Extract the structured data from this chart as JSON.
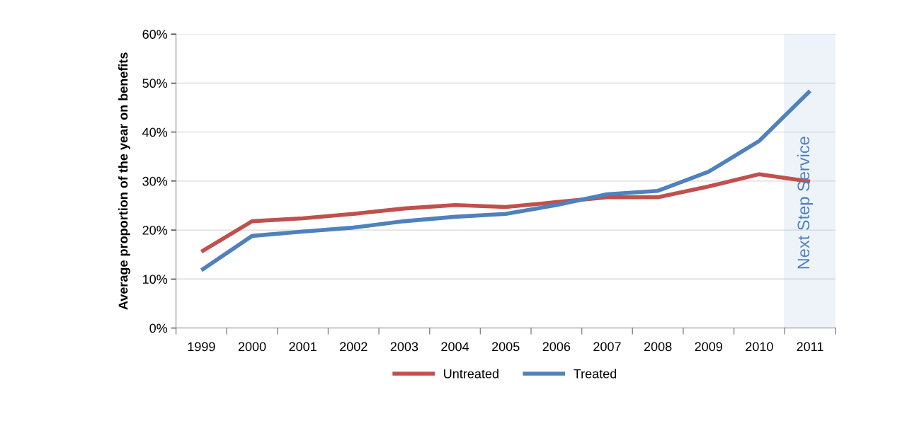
{
  "chart_data": {
    "type": "line",
    "ylabel": "Average proportion of the year on benefits",
    "categories": [
      "1999",
      "2000",
      "2001",
      "2002",
      "2003",
      "2004",
      "2005",
      "2006",
      "2007",
      "2008",
      "2009",
      "2010",
      "2011"
    ],
    "series": [
      {
        "name": "Untreated",
        "color": "#c0504d",
        "values": [
          0.156,
          0.218,
          0.224,
          0.233,
          0.244,
          0.251,
          0.247,
          0.257,
          0.267,
          0.267,
          0.289,
          0.314,
          0.299
        ]
      },
      {
        "name": "Treated",
        "color": "#4f81bd",
        "values": [
          0.118,
          0.188,
          0.197,
          0.205,
          0.218,
          0.227,
          0.233,
          0.251,
          0.273,
          0.28,
          0.319,
          0.382,
          0.484
        ]
      }
    ],
    "ylim": [
      0,
      0.6
    ],
    "yticks": [
      {
        "value": 0,
        "label": "0%"
      },
      {
        "value": 0.1,
        "label": "10%"
      },
      {
        "value": 0.2,
        "label": "20%"
      },
      {
        "value": 0.3,
        "label": "30%"
      },
      {
        "value": 0.4,
        "label": "40%"
      },
      {
        "value": 0.5,
        "label": "50%"
      },
      {
        "value": 0.6,
        "label": "60%"
      }
    ],
    "bands": [
      {
        "axis": "x",
        "from": "2011",
        "to": "2011",
        "label": "Next Step Service",
        "color": "#b9cde5"
      }
    ],
    "grid": "y",
    "legend": "bottom",
    "marker": "none",
    "line_style": "solid"
  }
}
